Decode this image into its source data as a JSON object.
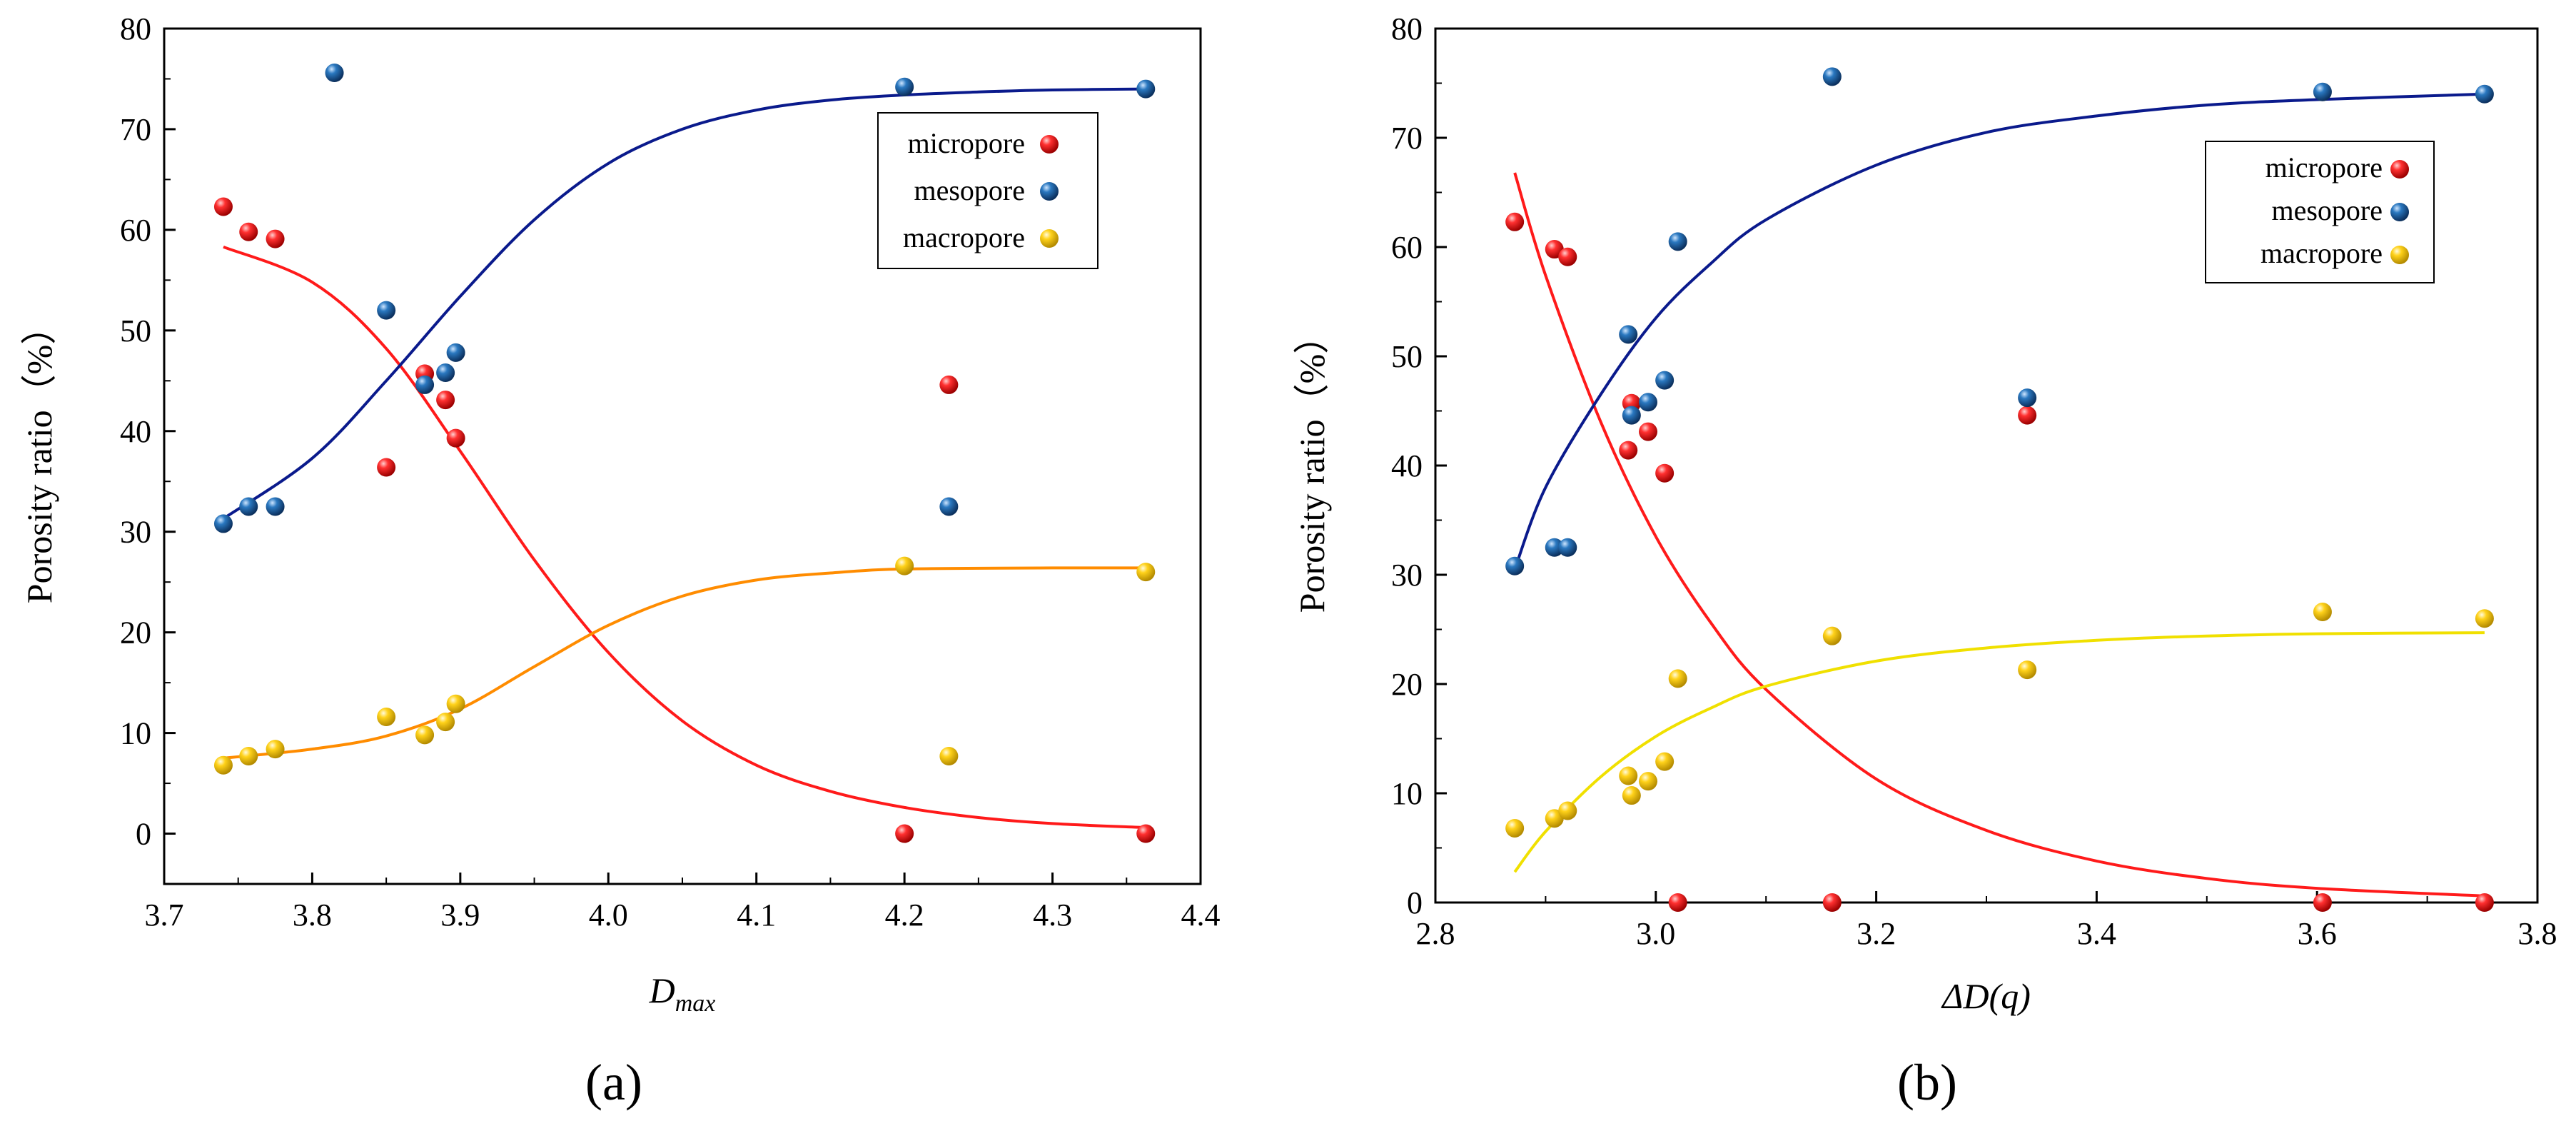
{
  "colors": {
    "micropore": "#ee1c1c",
    "mesopore": "#1a5f9e",
    "macropore": "#f5c400",
    "fit_micropore": "#ff1a1a",
    "fit_mesopore": "#0a1a8c",
    "fit_macropore_a": "#ff8c00",
    "fit_macropore_b": "#f0e000"
  },
  "panels": [
    {
      "label": "(a)",
      "xlabel": "D",
      "xlabel_sub": "max",
      "ylabel": "Porosity ratio（%）"
    },
    {
      "label": "(b)",
      "xlabel": "ΔD(q)",
      "xlabel_sub": "",
      "ylabel": "Porosity ratio（%）"
    }
  ],
  "chart_data": [
    {
      "type": "scatter",
      "panel_label": "(a)",
      "xlabel": "Dmax",
      "ylabel": "Porosity ratio（%）",
      "xlim": [
        3.7,
        4.4
      ],
      "ylim": [
        -5,
        80
      ],
      "xticks": [
        "3.7",
        "3.8",
        "3.9",
        "4.0",
        "4.1",
        "4.2",
        "4.3",
        "4.4"
      ],
      "yticks": [
        "0",
        "10",
        "20",
        "30",
        "40",
        "50",
        "60",
        "70",
        "80"
      ],
      "legend_position": "top-right",
      "series": [
        {
          "name": "micropore",
          "points": [
            [
              3.74,
              62.3
            ],
            [
              3.757,
              59.8
            ],
            [
              3.775,
              59.1
            ],
            [
              3.85,
              36.4
            ],
            [
              3.876,
              45.7
            ],
            [
              3.89,
              43.1
            ],
            [
              3.897,
              39.3
            ],
            [
              4.2,
              0.0
            ],
            [
              4.23,
              44.6
            ],
            [
              4.363,
              0.0
            ]
          ],
          "fit": [
            [
              3.74,
              58.3
            ],
            [
              3.8,
              54.8
            ],
            [
              3.85,
              48.2
            ],
            [
              3.9,
              38.0
            ],
            [
              3.95,
              27.2
            ],
            [
              4.0,
              18.0
            ],
            [
              4.05,
              11.2
            ],
            [
              4.1,
              6.8
            ],
            [
              4.15,
              4.2
            ],
            [
              4.2,
              2.6
            ],
            [
              4.25,
              1.6
            ],
            [
              4.3,
              1.0
            ],
            [
              4.363,
              0.6
            ]
          ]
        },
        {
          "name": "mesopore",
          "points": [
            [
              3.74,
              30.8
            ],
            [
              3.757,
              32.5
            ],
            [
              3.775,
              32.5
            ],
            [
              3.815,
              75.6
            ],
            [
              3.85,
              52.0
            ],
            [
              3.876,
              44.6
            ],
            [
              3.89,
              45.8
            ],
            [
              3.897,
              47.8
            ],
            [
              4.2,
              74.2
            ],
            [
              4.23,
              32.5
            ],
            [
              4.363,
              74.0
            ]
          ],
          "fit": [
            [
              3.74,
              31.3
            ],
            [
              3.8,
              37.3
            ],
            [
              3.85,
              45.0
            ],
            [
              3.9,
              53.4
            ],
            [
              3.95,
              61.0
            ],
            [
              4.0,
              66.6
            ],
            [
              4.05,
              70.0
            ],
            [
              4.1,
              71.9
            ],
            [
              4.15,
              72.9
            ],
            [
              4.2,
              73.4
            ],
            [
              4.25,
              73.7
            ],
            [
              4.3,
              73.9
            ],
            [
              4.363,
              74.0
            ]
          ]
        },
        {
          "name": "macropore",
          "points": [
            [
              3.74,
              6.8
            ],
            [
              3.757,
              7.7
            ],
            [
              3.775,
              8.4
            ],
            [
              3.85,
              11.6
            ],
            [
              3.876,
              9.8
            ],
            [
              3.89,
              11.1
            ],
            [
              3.897,
              12.9
            ],
            [
              4.2,
              26.6
            ],
            [
              4.23,
              7.7
            ],
            [
              4.363,
              26.0
            ]
          ],
          "fit": [
            [
              3.74,
              7.5
            ],
            [
              3.8,
              8.4
            ],
            [
              3.85,
              9.7
            ],
            [
              3.9,
              12.4
            ],
            [
              3.95,
              16.6
            ],
            [
              4.0,
              20.7
            ],
            [
              4.05,
              23.6
            ],
            [
              4.1,
              25.2
            ],
            [
              4.15,
              25.9
            ],
            [
              4.2,
              26.3
            ],
            [
              4.3,
              26.4
            ],
            [
              4.363,
              26.4
            ]
          ]
        }
      ]
    },
    {
      "type": "scatter",
      "panel_label": "(b)",
      "xlabel": "ΔD(q)",
      "ylabel": "Porosity ratio（%）",
      "xlim": [
        2.8,
        3.8
      ],
      "ylim": [
        0,
        80
      ],
      "xticks": [
        "2.8",
        "3.0",
        "3.2",
        "3.4",
        "3.6",
        "3.8"
      ],
      "yticks": [
        "0",
        "10",
        "20",
        "30",
        "40",
        "50",
        "60",
        "70",
        "80"
      ],
      "legend_position": "top-right",
      "series": [
        {
          "name": "micropore",
          "points": [
            [
              2.872,
              62.3
            ],
            [
              2.908,
              59.8
            ],
            [
              2.92,
              59.1
            ],
            [
              2.975,
              41.4
            ],
            [
              2.978,
              45.7
            ],
            [
              2.993,
              43.1
            ],
            [
              3.008,
              39.3
            ],
            [
              3.02,
              0.0
            ],
            [
              3.16,
              0.0
            ],
            [
              3.337,
              44.6
            ],
            [
              3.605,
              0.0
            ],
            [
              3.752,
              0.0
            ]
          ],
          "fit": [
            [
              2.872,
              66.8
            ],
            [
              2.9,
              57.4
            ],
            [
              2.95,
              44.0
            ],
            [
              3.0,
              33.5
            ],
            [
              3.05,
              25.6
            ],
            [
              3.1,
              19.5
            ],
            [
              3.2,
              11.3
            ],
            [
              3.3,
              6.6
            ],
            [
              3.4,
              3.8
            ],
            [
              3.5,
              2.2
            ],
            [
              3.6,
              1.3
            ],
            [
              3.752,
              0.6
            ]
          ]
        },
        {
          "name": "mesopore",
          "points": [
            [
              2.872,
              30.8
            ],
            [
              2.908,
              32.5
            ],
            [
              2.92,
              32.5
            ],
            [
              2.975,
              52.0
            ],
            [
              2.978,
              44.6
            ],
            [
              2.993,
              45.8
            ],
            [
              3.008,
              47.8
            ],
            [
              3.02,
              60.5
            ],
            [
              3.16,
              75.6
            ],
            [
              3.337,
              46.2
            ],
            [
              3.605,
              74.2
            ],
            [
              3.752,
              74.0
            ]
          ],
          "fit": [
            [
              2.872,
              30.5
            ],
            [
              2.9,
              38.0
            ],
            [
              2.95,
              46.5
            ],
            [
              3.0,
              53.5
            ],
            [
              3.05,
              58.5
            ],
            [
              3.1,
              62.5
            ],
            [
              3.2,
              67.5
            ],
            [
              3.3,
              70.5
            ],
            [
              3.4,
              72.0
            ],
            [
              3.5,
              73.0
            ],
            [
              3.6,
              73.5
            ],
            [
              3.752,
              74.0
            ]
          ]
        },
        {
          "name": "macropore",
          "points": [
            [
              2.872,
              6.8
            ],
            [
              2.908,
              7.7
            ],
            [
              2.92,
              8.4
            ],
            [
              2.975,
              11.6
            ],
            [
              2.978,
              9.8
            ],
            [
              2.993,
              11.1
            ],
            [
              3.008,
              12.9
            ],
            [
              3.02,
              20.5
            ],
            [
              3.16,
              24.4
            ],
            [
              3.337,
              21.3
            ],
            [
              3.605,
              26.6
            ],
            [
              3.752,
              26.0
            ]
          ],
          "fit": [
            [
              2.872,
              2.8
            ],
            [
              2.9,
              6.5
            ],
            [
              2.95,
              11.5
            ],
            [
              3.0,
              15.2
            ],
            [
              3.05,
              17.8
            ],
            [
              3.1,
              19.8
            ],
            [
              3.2,
              22.1
            ],
            [
              3.3,
              23.3
            ],
            [
              3.4,
              24.0
            ],
            [
              3.5,
              24.4
            ],
            [
              3.6,
              24.6
            ],
            [
              3.752,
              24.7
            ]
          ]
        }
      ]
    }
  ]
}
